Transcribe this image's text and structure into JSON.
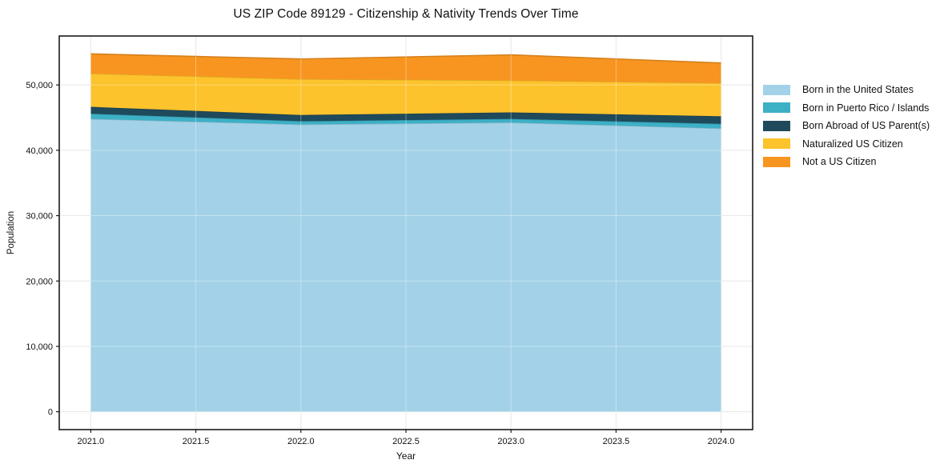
{
  "chart_data": {
    "type": "area",
    "stacked": true,
    "title": "US ZIP Code 89129 - Citizenship & Nativity Trends Over Time",
    "xlabel": "Year",
    "ylabel": "Population",
    "x": [
      2021,
      2022,
      2023,
      2024
    ],
    "xticks": [
      2021.0,
      2021.5,
      2022.0,
      2022.5,
      2023.0,
      2023.5,
      2024.0
    ],
    "xtick_labels": [
      "2021.0",
      "2021.5",
      "2022.0",
      "2022.5",
      "2023.0",
      "2023.5",
      "2024.0"
    ],
    "yticks": [
      0,
      10000,
      20000,
      30000,
      40000,
      50000
    ],
    "ytick_labels": [
      "0",
      "10,000",
      "20,000",
      "30,000",
      "40,000",
      "50,000"
    ],
    "xlim": [
      2020.85,
      2024.15
    ],
    "ylim": [
      -2737,
      57487
    ],
    "grid": true,
    "legend_position": "right",
    "series": [
      {
        "name": "Born in the United States",
        "color": "#a3d2e8",
        "values": [
          44800,
          43950,
          44250,
          43350
        ]
      },
      {
        "name": "Born in Puerto Rico / Islands",
        "color": "#3db0c6",
        "values": [
          800,
          500,
          550,
          700
        ]
      },
      {
        "name": "Born Abroad of US Parent(s)",
        "color": "#1e4a5c",
        "values": [
          1050,
          950,
          1000,
          1150
        ]
      },
      {
        "name": "Naturalized US Citizen",
        "color": "#fdc32c",
        "values": [
          5100,
          5500,
          4900,
          5100
        ]
      },
      {
        "name": "Not a US Citizen",
        "color": "#f89520",
        "values": [
          3000,
          3070,
          3900,
          3060
        ]
      }
    ],
    "totals": [
      54750,
      53970,
      54600,
      53360
    ]
  }
}
